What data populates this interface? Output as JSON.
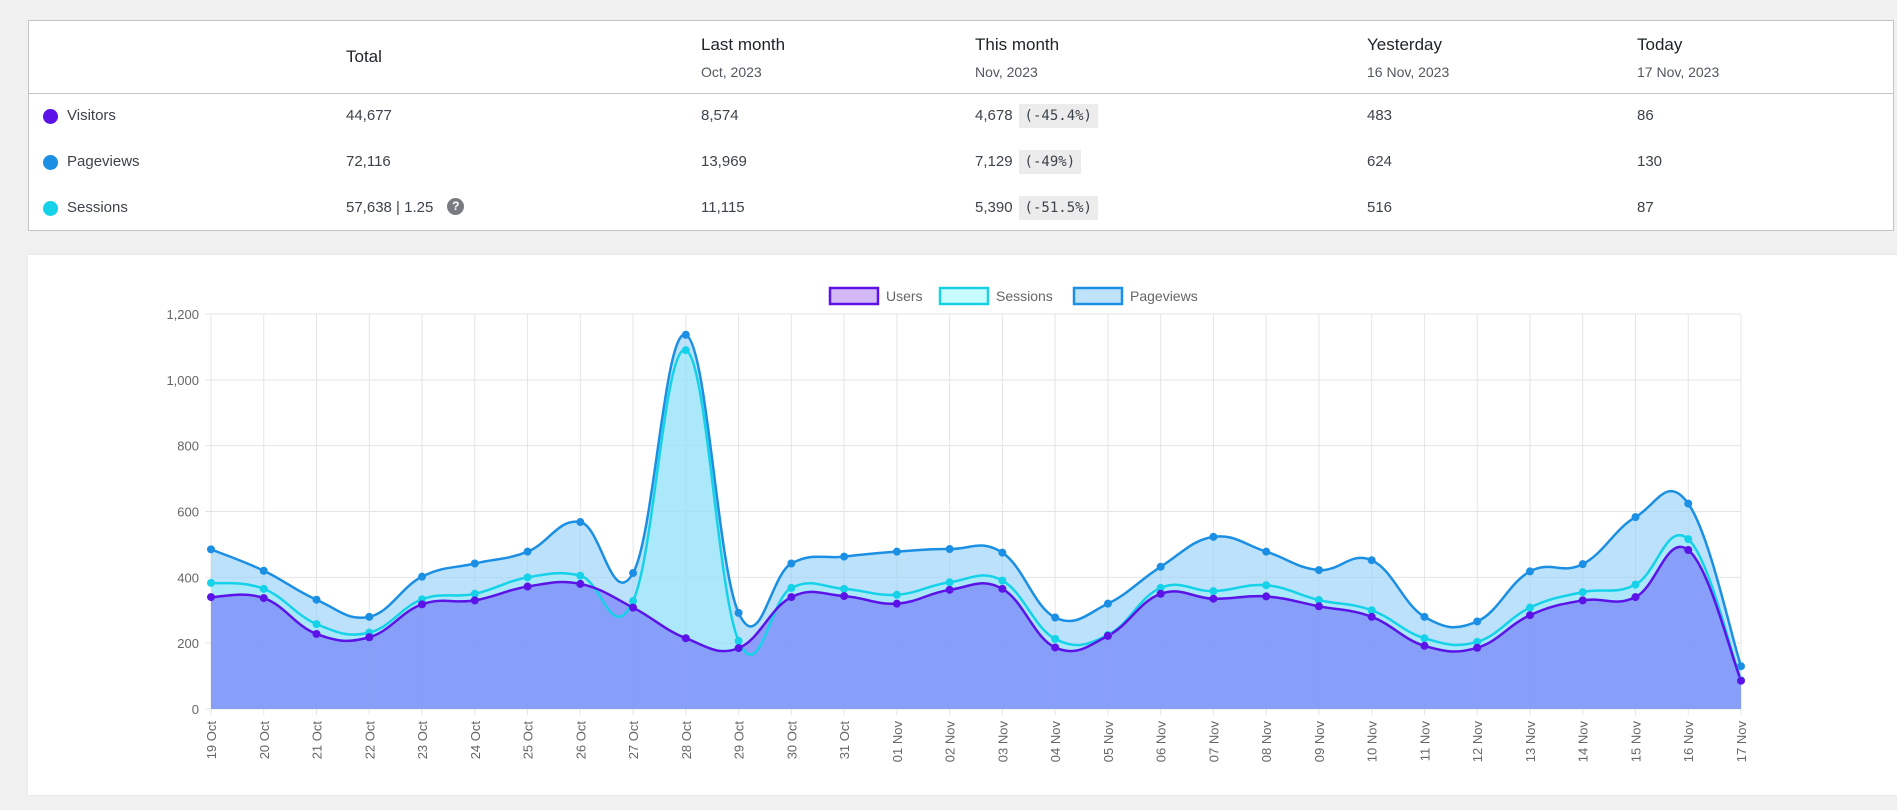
{
  "table": {
    "headers": {
      "total": "Total",
      "last_month": {
        "label": "Last month",
        "sub": "Oct, 2023"
      },
      "this_month": {
        "label": "This month",
        "sub": "Nov, 2023"
      },
      "yesterday": {
        "label": "Yesterday",
        "sub": "16 Nov, 2023"
      },
      "today": {
        "label": "Today",
        "sub": "17 Nov, 2023"
      }
    },
    "rows": [
      {
        "label": "Visitors",
        "color": "#5b13e8",
        "total": "44,677",
        "last_month": "8,574",
        "this_month": "4,678",
        "change": "(-45.4%)",
        "yesterday": "483",
        "today": "86"
      },
      {
        "label": "Pageviews",
        "color": "#1a8fe3",
        "total": "72,116",
        "last_month": "13,969",
        "this_month": "7,129",
        "change": "(-49%)",
        "yesterday": "624",
        "today": "130"
      },
      {
        "label": "Sessions",
        "color": "#15d2e8",
        "total": "57,638 | 1.25",
        "last_month": "11,115",
        "this_month": "5,390",
        "change": "(-51.5%)",
        "yesterday": "516",
        "today": "87"
      }
    ],
    "help_icon": "?"
  },
  "chart_data": {
    "type": "area",
    "categories": [
      "19 Oct",
      "20 Oct",
      "21 Oct",
      "22 Oct",
      "23 Oct",
      "24 Oct",
      "25 Oct",
      "26 Oct",
      "27 Oct",
      "28 Oct",
      "29 Oct",
      "30 Oct",
      "31 Oct",
      "01 Nov",
      "02 Nov",
      "03 Nov",
      "04 Nov",
      "05 Nov",
      "06 Nov",
      "07 Nov",
      "08 Nov",
      "09 Nov",
      "10 Nov",
      "11 Nov",
      "12 Nov",
      "13 Nov",
      "14 Nov",
      "15 Nov",
      "16 Nov",
      "17 Nov"
    ],
    "series": [
      {
        "name": "Users",
        "color": "#5b13e8",
        "fill": "rgba(121,128,248,0.70)",
        "legend_fill": "#d5baf9",
        "values": [
          340,
          337,
          228,
          218,
          318,
          330,
          372,
          380,
          308,
          215,
          185,
          340,
          343,
          320,
          362,
          365,
          187,
          222,
          350,
          335,
          342,
          312,
          280,
          192,
          186,
          285,
          330,
          340,
          483,
          86
        ]
      },
      {
        "name": "Sessions",
        "color": "#15d2e8",
        "fill": "rgba(150,240,250,0.45)",
        "legend_fill": "#c8fbfd",
        "values": [
          383,
          365,
          258,
          232,
          333,
          350,
          400,
          405,
          328,
          1090,
          207,
          368,
          365,
          347,
          385,
          390,
          213,
          225,
          368,
          358,
          376,
          331,
          300,
          215,
          204,
          308,
          355,
          378,
          516,
          87
        ]
      },
      {
        "name": "Pageviews",
        "color": "#1a8fe3",
        "fill": "rgba(150,210,248,0.65)",
        "legend_fill": "#bfe2fb",
        "values": [
          485,
          420,
          332,
          280,
          402,
          442,
          478,
          568,
          413,
          1137,
          292,
          442,
          463,
          478,
          486,
          475,
          278,
          320,
          432,
          523,
          478,
          422,
          452,
          280,
          266,
          418,
          440,
          583,
          624,
          130
        ]
      }
    ],
    "ylim": [
      0,
      1200
    ],
    "yticks": [
      0,
      200,
      400,
      600,
      800,
      1000,
      1200
    ],
    "ytick_labels": [
      "0",
      "200",
      "400",
      "600",
      "800",
      "1,000",
      "1,200"
    ],
    "grid": true,
    "legend_position": "top"
  }
}
